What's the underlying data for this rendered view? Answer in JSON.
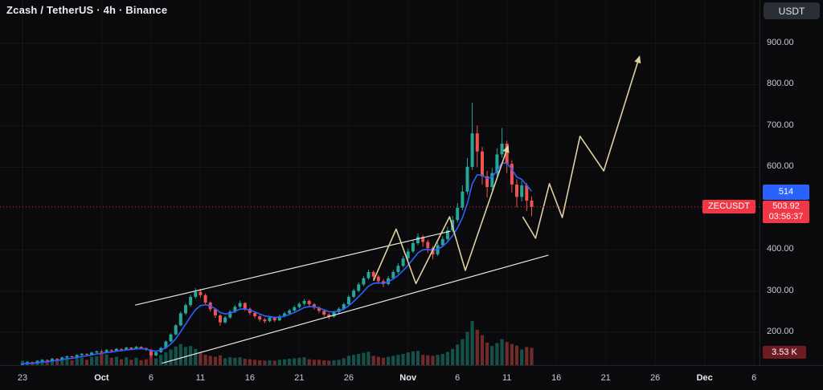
{
  "header": {
    "title": "Zcash / TetherUS · 4h · Binance"
  },
  "price_axis": {
    "unit_button": "USDT",
    "blue_badge": {
      "value": "514",
      "price": 514,
      "color": "#2962ff"
    },
    "price_badge": {
      "price": "503.92",
      "countdown": "03:56:37",
      "color": "#f23645"
    },
    "volume_badge": {
      "label": "3.53 K",
      "color": "#6e1b22"
    }
  },
  "price_line": {
    "symbol_label": "ZECUSDT",
    "value": 503.92
  },
  "chart_data": {
    "type": "candlestick",
    "title": "Zcash / TetherUS · 4h · Binance",
    "symbol": "ZECUSDT",
    "timeframe": "4h",
    "exchange": "Binance",
    "x_unit": "days since Sep 23",
    "current_price": 503.92,
    "current_volume_label": "3.53 K",
    "y_ticks": [
      {
        "price": 900,
        "label": "900.00"
      },
      {
        "price": 800,
        "label": "800.00"
      },
      {
        "price": 700,
        "label": "700.00"
      },
      {
        "price": 600,
        "label": "600.00"
      },
      {
        "price": 400,
        "label": "400.00"
      },
      {
        "price": 300,
        "label": "300.00"
      },
      {
        "price": 200,
        "label": "200.00"
      }
    ],
    "x_ticks": [
      {
        "d": 0,
        "label": "23"
      },
      {
        "d": 8,
        "label": "Oct",
        "major": true
      },
      {
        "d": 13,
        "label": "6"
      },
      {
        "d": 18,
        "label": "11"
      },
      {
        "d": 23,
        "label": "16"
      },
      {
        "d": 28,
        "label": "21"
      },
      {
        "d": 33,
        "label": "26"
      },
      {
        "d": 39,
        "label": "Nov",
        "major": true
      },
      {
        "d": 44,
        "label": "6"
      },
      {
        "d": 49,
        "label": "11"
      },
      {
        "d": 54,
        "label": "16"
      },
      {
        "d": 59,
        "label": "21"
      },
      {
        "d": 64,
        "label": "26"
      },
      {
        "d": 69,
        "label": "Dec",
        "major": true
      },
      {
        "d": 74,
        "label": "6"
      }
    ],
    "candles_format": "[day_offset, open, high, low, close, volume_K]",
    "candles": [
      [
        0,
        122,
        126,
        119,
        124,
        0.9
      ],
      [
        0.5,
        124,
        129,
        122,
        127,
        0.8
      ],
      [
        1,
        127,
        128,
        123,
        125,
        0.7
      ],
      [
        1.5,
        125,
        132,
        124,
        130,
        1.0
      ],
      [
        2,
        130,
        135,
        128,
        133,
        1.1
      ],
      [
        2.5,
        133,
        134,
        129,
        131,
        0.8
      ],
      [
        3,
        131,
        138,
        130,
        136,
        1.2
      ],
      [
        3.5,
        136,
        137,
        132,
        134,
        0.9
      ],
      [
        4,
        134,
        141,
        133,
        139,
        1.3
      ],
      [
        4.5,
        139,
        144,
        137,
        142,
        1.4
      ],
      [
        5,
        142,
        143,
        138,
        140,
        1.0
      ],
      [
        5.5,
        140,
        147,
        139,
        145,
        1.5
      ],
      [
        6,
        145,
        150,
        143,
        148,
        1.6
      ],
      [
        6.5,
        148,
        149,
        144,
        146,
        1.1
      ],
      [
        7,
        146,
        153,
        145,
        151,
        1.7
      ],
      [
        7.5,
        151,
        156,
        149,
        154,
        1.8
      ],
      [
        8,
        154,
        158,
        150,
        152,
        2.6
      ],
      [
        8.5,
        152,
        160,
        151,
        157,
        2.2
      ],
      [
        9,
        157,
        159,
        153,
        155,
        1.5
      ],
      [
        9.5,
        155,
        162,
        154,
        160,
        1.7
      ],
      [
        10,
        160,
        161,
        156,
        158,
        1.2
      ],
      [
        10.5,
        158,
        165,
        157,
        163,
        1.6
      ],
      [
        11,
        163,
        164,
        158,
        160,
        1.1
      ],
      [
        11.5,
        160,
        167,
        159,
        165,
        1.5
      ],
      [
        12,
        165,
        166,
        160,
        162,
        1.0
      ],
      [
        12.5,
        162,
        163,
        155,
        158,
        1.2
      ],
      [
        13,
        158,
        160,
        140,
        144,
        1.9
      ],
      [
        13.5,
        144,
        154,
        142,
        152,
        1.4
      ],
      [
        14,
        152,
        165,
        150,
        162,
        2.1
      ],
      [
        14.5,
        162,
        180,
        160,
        178,
        2.6
      ],
      [
        15,
        178,
        198,
        176,
        195,
        3.2
      ],
      [
        15.5,
        195,
        220,
        193,
        217,
        3.8
      ],
      [
        16,
        217,
        250,
        215,
        246,
        4.3
      ],
      [
        16.5,
        246,
        270,
        242,
        266,
        3.7
      ],
      [
        17,
        266,
        291,
        262,
        286,
        3.9
      ],
      [
        17.5,
        286,
        307,
        282,
        298,
        3.3
      ],
      [
        18,
        298,
        305,
        284,
        290,
        2.5
      ],
      [
        18.5,
        290,
        294,
        266,
        272,
        2.1
      ],
      [
        19,
        272,
        275,
        250,
        256,
        1.9
      ],
      [
        19.5,
        256,
        259,
        235,
        241,
        1.7
      ],
      [
        20,
        241,
        244,
        216,
        224,
        2.0
      ],
      [
        20.5,
        224,
        240,
        221,
        236,
        1.4
      ],
      [
        21,
        236,
        254,
        233,
        250,
        1.6
      ],
      [
        21.5,
        250,
        266,
        247,
        262,
        1.5
      ],
      [
        22,
        262,
        277,
        259,
        271,
        1.6
      ],
      [
        22.5,
        271,
        273,
        252,
        257,
        1.3
      ],
      [
        23,
        257,
        260,
        242,
        247,
        1.2
      ],
      [
        23.5,
        247,
        250,
        234,
        239,
        1.1
      ],
      [
        24,
        239,
        242,
        226,
        231,
        1.0
      ],
      [
        24.5,
        231,
        235,
        222,
        227,
        0.9
      ],
      [
        25,
        227,
        240,
        224,
        236,
        1.0
      ],
      [
        25.5,
        236,
        238,
        225,
        229,
        0.9
      ],
      [
        26,
        229,
        243,
        227,
        239,
        1.1
      ],
      [
        26.5,
        239,
        250,
        236,
        246,
        1.2
      ],
      [
        27,
        246,
        257,
        243,
        253,
        1.3
      ],
      [
        27.5,
        253,
        265,
        250,
        261,
        1.4
      ],
      [
        28,
        261,
        273,
        258,
        269,
        1.5
      ],
      [
        28.5,
        269,
        281,
        265,
        276,
        1.6
      ],
      [
        29,
        276,
        279,
        262,
        268,
        1.2
      ],
      [
        29.5,
        268,
        271,
        255,
        260,
        1.1
      ],
      [
        30,
        260,
        263,
        247,
        252,
        1.1
      ],
      [
        30.5,
        252,
        255,
        238,
        243,
        1.0
      ],
      [
        31,
        243,
        246,
        232,
        238,
        0.9
      ],
      [
        31.5,
        238,
        252,
        236,
        249,
        1.0
      ],
      [
        32,
        249,
        261,
        246,
        257,
        1.1
      ],
      [
        32.5,
        257,
        272,
        254,
        268,
        1.4
      ],
      [
        33,
        268,
        290,
        265,
        286,
        1.9
      ],
      [
        33.5,
        286,
        306,
        283,
        301,
        2.1
      ],
      [
        34,
        301,
        321,
        297,
        316,
        2.3
      ],
      [
        34.5,
        316,
        336,
        312,
        331,
        2.5
      ],
      [
        35,
        331,
        352,
        327,
        346,
        2.7
      ],
      [
        35.5,
        346,
        350,
        328,
        335,
        1.9
      ],
      [
        36,
        335,
        339,
        317,
        324,
        1.7
      ],
      [
        36.5,
        324,
        329,
        310,
        317,
        1.5
      ],
      [
        37,
        317,
        336,
        314,
        331,
        1.7
      ],
      [
        37.5,
        331,
        351,
        328,
        346,
        1.9
      ],
      [
        38,
        346,
        367,
        342,
        361,
        2.1
      ],
      [
        38.5,
        361,
        385,
        357,
        379,
        2.3
      ],
      [
        39,
        379,
        403,
        375,
        396,
        2.6
      ],
      [
        39.5,
        396,
        423,
        392,
        416,
        2.8
      ],
      [
        40,
        416,
        440,
        411,
        431,
        2.9
      ],
      [
        40.5,
        431,
        436,
        407,
        419,
        2.1
      ],
      [
        41,
        419,
        424,
        392,
        404,
        2.0
      ],
      [
        41.5,
        404,
        409,
        377,
        389,
        1.9
      ],
      [
        42,
        389,
        418,
        385,
        411,
        2.1
      ],
      [
        42.5,
        411,
        433,
        406,
        426,
        2.3
      ],
      [
        43,
        426,
        456,
        421,
        447,
        2.7
      ],
      [
        43.5,
        447,
        482,
        442,
        472,
        3.3
      ],
      [
        44,
        472,
        513,
        466,
        502,
        4.2
      ],
      [
        44.5,
        502,
        556,
        496,
        541,
        5.3
      ],
      [
        45,
        541,
        622,
        534,
        601,
        6.8
      ],
      [
        45.5,
        601,
        756,
        593,
        682,
        9.0
      ],
      [
        46,
        682,
        701,
        600,
        638,
        7.2
      ],
      [
        46.5,
        638,
        649,
        558,
        578,
        6.1
      ],
      [
        47,
        578,
        591,
        527,
        552,
        4.6
      ],
      [
        47.5,
        552,
        598,
        544,
        586,
        3.9
      ],
      [
        48,
        586,
        646,
        579,
        631,
        4.5
      ],
      [
        48.5,
        631,
        695,
        623,
        657,
        5.3
      ],
      [
        49,
        657,
        664,
        586,
        608,
        4.7
      ],
      [
        49.5,
        608,
        617,
        539,
        558,
        4.3
      ],
      [
        50,
        558,
        571,
        503,
        528,
        4.0
      ],
      [
        50.5,
        528,
        567,
        517,
        556,
        3.2
      ],
      [
        51,
        556,
        562,
        494,
        519,
        3.7
      ],
      [
        51.5,
        519,
        529,
        481,
        503.92,
        3.53
      ]
    ],
    "volume_unit": "K",
    "volume_scale_max": 9.5,
    "ma_line": {
      "label": "moving-average",
      "alpha": 0.28,
      "color": "#2962ff"
    },
    "trendlines": [
      {
        "name": "lower-channel-line",
        "from": [
          14.1,
          125
        ],
        "to": [
          53.2,
          387
        ]
      },
      {
        "name": "upper-channel-line",
        "from": [
          11.4,
          266
        ],
        "to": [
          43.3,
          445
        ]
      }
    ],
    "drawings": [
      {
        "type": "arrow-polyline",
        "name": "zigzag-past",
        "points": [
          [
            35.5,
            325
          ],
          [
            37.8,
            450
          ],
          [
            39.8,
            318
          ],
          [
            43.2,
            480
          ],
          [
            44.8,
            350
          ],
          [
            49.1,
            650
          ]
        ]
      },
      {
        "type": "arrow-polyline",
        "name": "zigzag-projection",
        "points": [
          [
            50.6,
            480
          ],
          [
            51.9,
            428
          ],
          [
            53.3,
            560
          ],
          [
            54.6,
            478
          ],
          [
            56.4,
            675
          ],
          [
            58.8,
            591
          ],
          [
            62.4,
            867
          ]
        ]
      }
    ],
    "colors": {
      "up": "#26a69a",
      "down": "#ef5350",
      "vol_up": "rgba(38,166,154,0.45)",
      "vol_down": "rgba(239,83,80,0.45)",
      "trendline": "rgba(255,255,255,0.9)",
      "drawing": "#ded0a0",
      "price_line": "#f23645",
      "grid": "rgba(255,255,255,0.05)",
      "ma": "#2962ff"
    },
    "legend_position": "top-left",
    "grid": true
  }
}
